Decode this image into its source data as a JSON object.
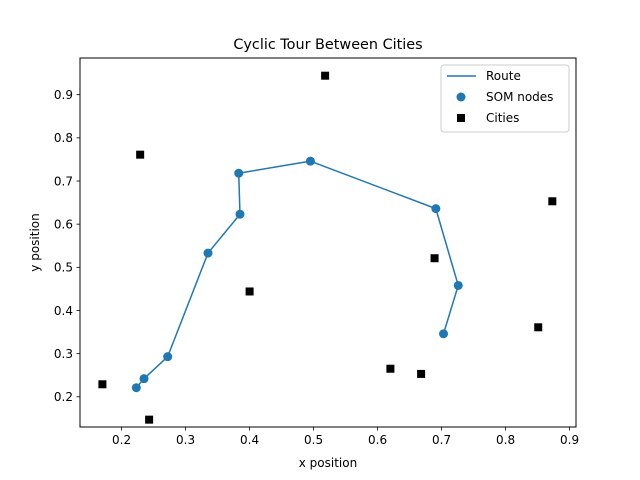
{
  "chart_data": {
    "type": "scatter",
    "title": "Cyclic Tour Between Cities",
    "xlabel": "x position",
    "ylabel": "y position",
    "xlim": [
      0.135,
      0.91
    ],
    "ylim": [
      0.13,
      0.985
    ],
    "xticks": [
      0.2,
      0.3,
      0.4,
      0.5,
      0.6,
      0.7,
      0.8,
      0.9
    ],
    "yticks": [
      0.2,
      0.3,
      0.4,
      0.5,
      0.6,
      0.7,
      0.8,
      0.9
    ],
    "xtick_labels": [
      "0.2",
      "0.3",
      "0.4",
      "0.5",
      "0.6",
      "0.7",
      "0.8",
      "0.9"
    ],
    "ytick_labels": [
      "0.2",
      "0.3",
      "0.4",
      "0.5",
      "0.6",
      "0.7",
      "0.8",
      "0.9"
    ],
    "grid": false,
    "legend_position": "top-right",
    "series": [
      {
        "name": "Route",
        "kind": "line",
        "color": "#1f77b4",
        "points": [
          [
            0.703,
            0.346
          ],
          [
            0.726,
            0.458
          ],
          [
            0.691,
            0.636
          ],
          [
            0.495,
            0.746
          ],
          [
            0.383,
            0.718
          ],
          [
            0.385,
            0.623
          ],
          [
            0.335,
            0.533
          ],
          [
            0.272,
            0.293
          ],
          [
            0.235,
            0.242
          ],
          [
            0.223,
            0.221
          ]
        ]
      },
      {
        "name": "SOM nodes",
        "kind": "scatter",
        "marker": "circle",
        "color": "#1f77b4",
        "points": [
          [
            0.703,
            0.346
          ],
          [
            0.726,
            0.458
          ],
          [
            0.691,
            0.636
          ],
          [
            0.495,
            0.746
          ],
          [
            0.383,
            0.718
          ],
          [
            0.385,
            0.623
          ],
          [
            0.335,
            0.533
          ],
          [
            0.272,
            0.293
          ],
          [
            0.235,
            0.242
          ],
          [
            0.223,
            0.221
          ]
        ]
      },
      {
        "name": "Cities",
        "kind": "scatter",
        "marker": "square",
        "color": "#000000",
        "points": [
          [
            0.518,
            0.944
          ],
          [
            0.229,
            0.761
          ],
          [
            0.873,
            0.653
          ],
          [
            0.689,
            0.521
          ],
          [
            0.4,
            0.444
          ],
          [
            0.851,
            0.361
          ],
          [
            0.62,
            0.265
          ],
          [
            0.668,
            0.253
          ],
          [
            0.17,
            0.229
          ],
          [
            0.243,
            0.147
          ]
        ]
      }
    ]
  }
}
